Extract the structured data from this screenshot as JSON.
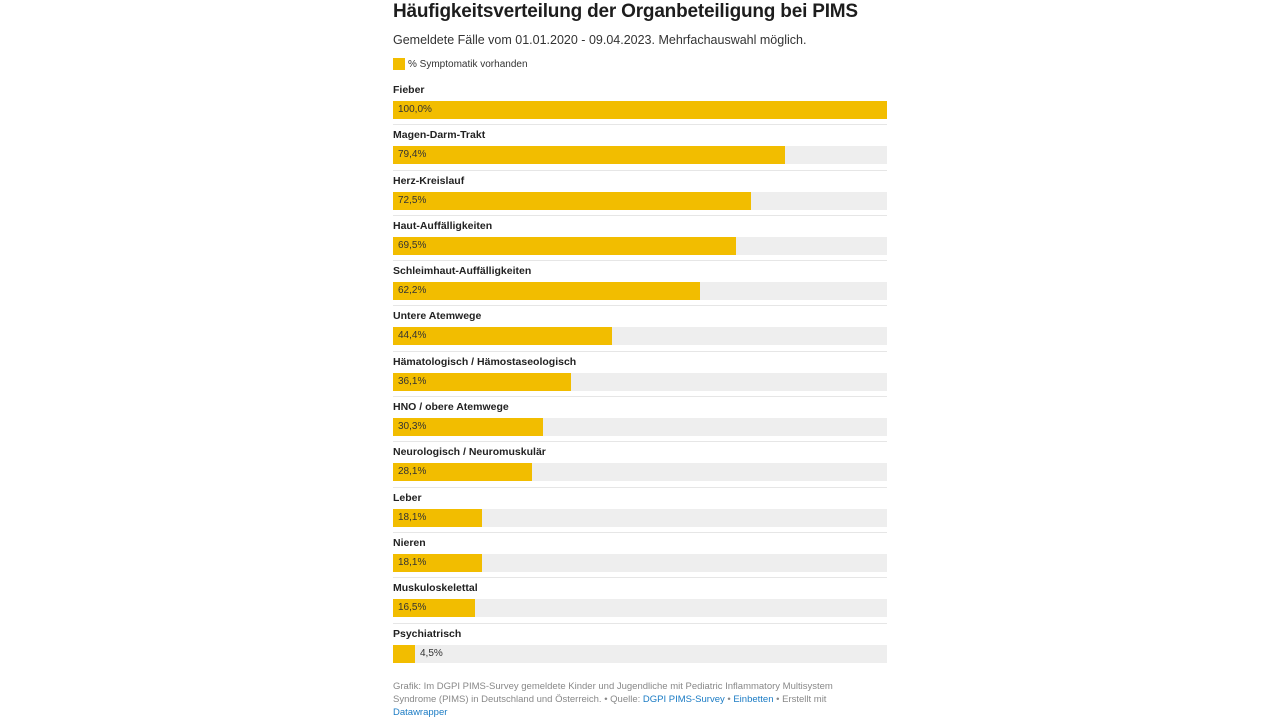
{
  "chart_data": {
    "type": "bar",
    "orientation": "horizontal",
    "title": "Häufigkeitsverteilung der Organbeteiligung bei PIMS",
    "subtitle": "Gemeldete Fälle vom 01.01.2020 - 09.04.2023. Mehrfachauswahl möglich.",
    "legend": [
      {
        "label": "% Symptomatik vorhanden",
        "color": "#f2bd00"
      }
    ],
    "xlim": [
      0,
      100
    ],
    "categories": [
      "Fieber",
      "Magen-Darm-Trakt",
      "Herz-Kreislauf",
      "Haut-Auffälligkeiten",
      "Schleimhaut-Auffälligkeiten",
      "Untere Atemwege",
      "Hämatologisch / Hämostaseologisch",
      "HNO / obere Atemwege",
      "Neurologisch / Neuromuskulär",
      "Leber",
      "Nieren",
      "Muskuloskelettal",
      "Psychiatrisch"
    ],
    "values": [
      100.0,
      79.4,
      72.5,
      69.5,
      62.2,
      44.4,
      36.1,
      30.3,
      28.1,
      18.1,
      18.1,
      16.5,
      4.5
    ],
    "value_labels": [
      "100,0%",
      "79,4%",
      "72,5%",
      "69,5%",
      "62,2%",
      "44,4%",
      "36,1%",
      "30,3%",
      "28,1%",
      "18,1%",
      "18,1%",
      "16,5%",
      "4,5%"
    ],
    "colors": {
      "bar": "#f2bd00",
      "track": "#eeeeee"
    }
  },
  "notes": {
    "prefix": "Grafik: Im DGPI PIMS-Survey gemeldete Kinder und Jugendliche mit Pediatric Inflammatory Multisystem Syndrome (PIMS) in Deutschland und Österreich. • Quelle: ",
    "source_link": "DGPI PIMS-Survey",
    "sep1": " • ",
    "embed_link": "Einbetten",
    "sep2": " • Erstellt mit ",
    "tool_link": "Datawrapper"
  }
}
